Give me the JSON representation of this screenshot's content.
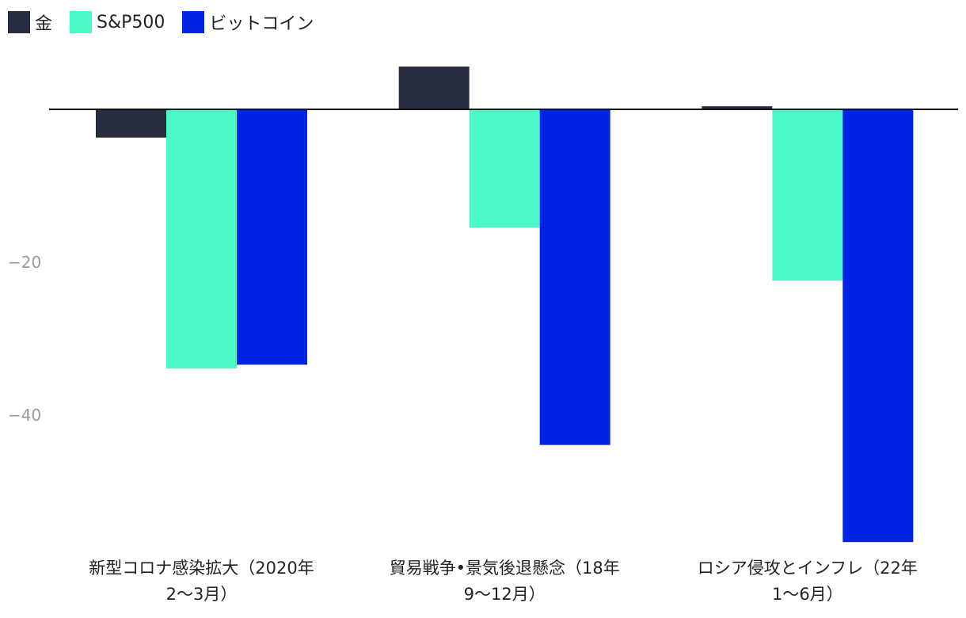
{
  "chart_data": {
    "type": "bar",
    "categories": [
      [
        "新型コロナ感染拡大（2020年",
        "2～3月）"
      ],
      [
        "貿易戦争•景気後退懸念（18年",
        "9～12月）"
      ],
      [
        "ロシア侵攻とインフレ（22年",
        "1～6月）"
      ]
    ],
    "series": [
      {
        "name": "金",
        "color": "#282d40",
        "values": [
          -3.7,
          5.6,
          0.4
        ]
      },
      {
        "name": "S&P500",
        "color": "#4af8c8",
        "values": [
          -33.9,
          -15.5,
          -22.4
        ]
      },
      {
        "name": "ビットコイン",
        "color": "#0024e6",
        "values": [
          -33.4,
          -43.9,
          -56.6
        ]
      }
    ],
    "yticks": [
      -20,
      -40
    ],
    "ytick_labels": [
      "−20",
      "−40"
    ],
    "ylim": [
      -57,
      6
    ],
    "grid": false,
    "legend_position": "top-left"
  }
}
